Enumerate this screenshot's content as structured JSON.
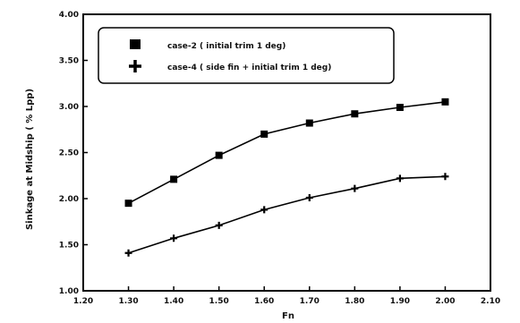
{
  "chart_data": {
    "type": "line",
    "title": "",
    "xlabel": "Fn",
    "ylabel": "Sinkage at Midship ( % Lpp)",
    "xlim": [
      1.2,
      2.1
    ],
    "ylim": [
      1.0,
      4.0
    ],
    "xticks": [
      "1.20",
      "1.30",
      "1.40",
      "1.50",
      "1.60",
      "1.70",
      "1.80",
      "1.90",
      "2.00",
      "2.10"
    ],
    "yticks": [
      "1.00",
      "1.50",
      "2.00",
      "2.50",
      "3.00",
      "3.50",
      "4.00"
    ],
    "grid": false,
    "legend_position": "top-left",
    "series": [
      {
        "name": "case-2 ( initial trim 1 deg)",
        "marker": "square",
        "color": "#000000",
        "x": [
          1.3,
          1.4,
          1.5,
          1.6,
          1.7,
          1.8,
          1.9,
          2.0
        ],
        "values": [
          1.95,
          2.21,
          2.47,
          2.7,
          2.82,
          2.92,
          2.99,
          3.05
        ]
      },
      {
        "name": "case-4 ( side fin + initial trim 1 deg)",
        "marker": "plus",
        "color": "#000000",
        "x": [
          1.3,
          1.4,
          1.5,
          1.6,
          1.7,
          1.8,
          1.9,
          2.0
        ],
        "values": [
          1.41,
          1.57,
          1.71,
          1.88,
          2.01,
          2.11,
          2.22,
          2.24
        ]
      }
    ]
  }
}
